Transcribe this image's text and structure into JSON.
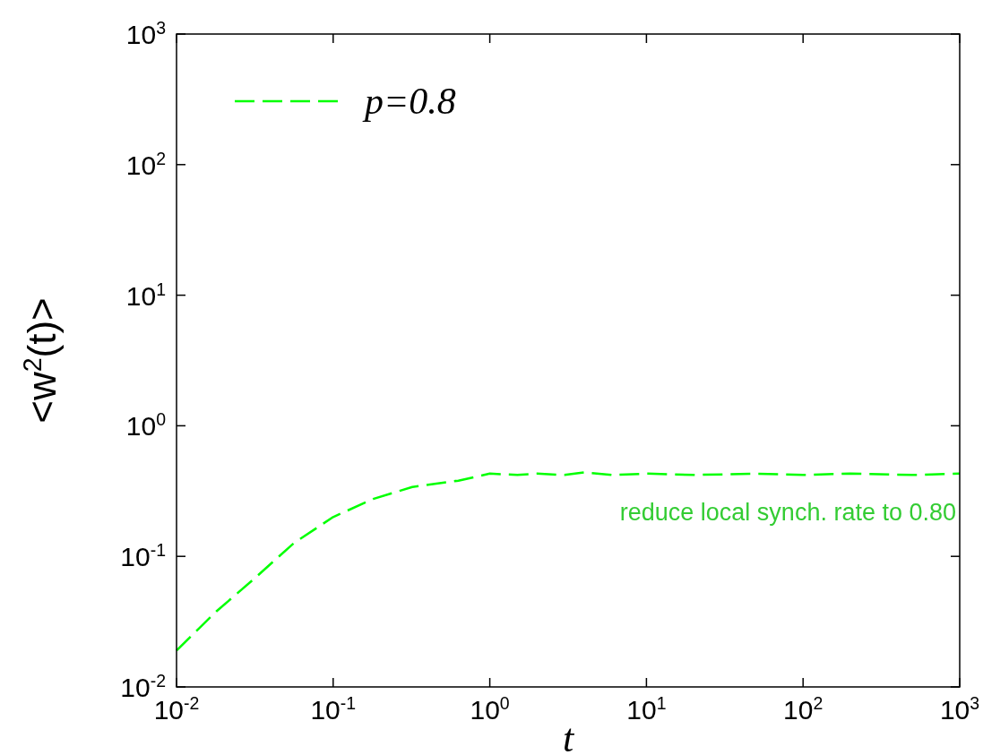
{
  "chart_data": {
    "type": "line",
    "xlabel": "t",
    "ylabel": "<w$^{2}$(t)>",
    "log": "xy",
    "grid": false,
    "legend": "top left",
    "line_style": "dashed",
    "xlim": [
      0.01,
      1000
    ],
    "ylim": [
      0.01,
      1000
    ],
    "xticks": [
      {
        "value": 0.01,
        "label": "10$^{-2}$"
      },
      {
        "value": 0.1,
        "label": "10$^{-1}$"
      },
      {
        "value": 1,
        "label": "10$^{0}$"
      },
      {
        "value": 10,
        "label": "10$^{1}$"
      },
      {
        "value": 100,
        "label": "10$^{2}$"
      },
      {
        "value": 1000,
        "label": "10$^{3}$"
      }
    ],
    "yticks": [
      {
        "value": 0.01,
        "label": "10$^{-2}$"
      },
      {
        "value": 0.1,
        "label": "10$^{-1}$"
      },
      {
        "value": 1,
        "label": "10$^{0}$"
      },
      {
        "value": 10,
        "label": "10$^{1}$"
      },
      {
        "value": 100,
        "label": "10$^{2}$"
      },
      {
        "value": 1000,
        "label": "10$^{3}$"
      }
    ],
    "annotations": [
      "reduce local synch. rate to  0.80"
    ],
    "series": [
      {
        "name": "p=0.8",
        "color": "#00ff00",
        "x": [
          0.01,
          0.018,
          0.032,
          0.056,
          0.1,
          0.18,
          0.32,
          0.63,
          1,
          1.5,
          2,
          3,
          4,
          6,
          10,
          20,
          50,
          100,
          200,
          500,
          1000
        ],
        "values": [
          0.019,
          0.038,
          0.069,
          0.126,
          0.2,
          0.275,
          0.34,
          0.38,
          0.43,
          0.42,
          0.43,
          0.42,
          0.44,
          0.42,
          0.43,
          0.42,
          0.43,
          0.42,
          0.43,
          0.42,
          0.43
        ]
      }
    ]
  }
}
